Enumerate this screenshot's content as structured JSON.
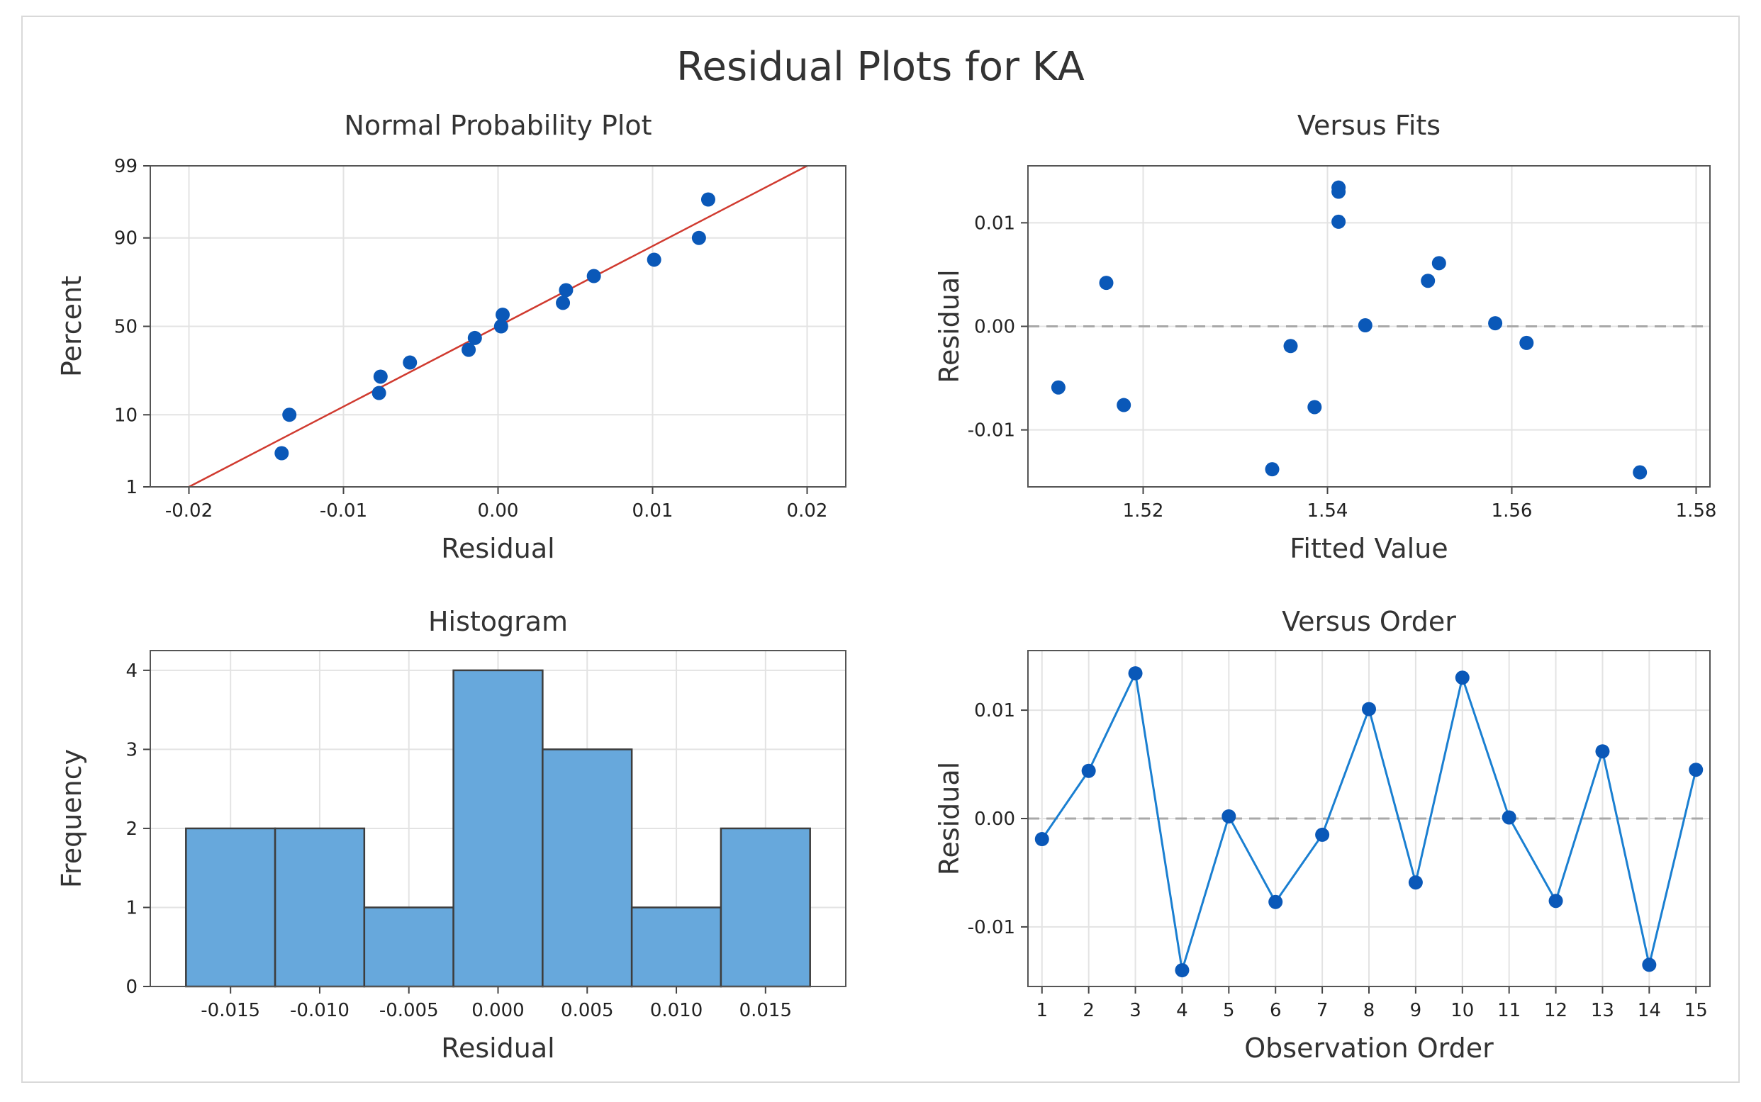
{
  "title": "Residual Plots for KA",
  "colors": {
    "point": "#0a58b8",
    "line": "#1a7fd1",
    "fit_line": "#d03a2f",
    "bar_fill": "#67a8dc",
    "bar_edge": "#3d3d3d",
    "grid": "#e3e3e3",
    "refline": "#a8a8a8"
  },
  "chart_data": [
    {
      "type": "scatter",
      "title": "Normal Probability Plot",
      "xlabel": "Residual",
      "ylabel": "Percent",
      "xlim": [
        -0.0225,
        0.0225
      ],
      "xticks": [
        -0.02,
        -0.01,
        0.0,
        0.01,
        0.02
      ],
      "xtick_labels": [
        "-0.02",
        "-0.01",
        "0.00",
        "0.01",
        "0.02"
      ],
      "yscale": "normal-probability",
      "ylim_percent": [
        1,
        99
      ],
      "yticks": [
        1,
        10,
        50,
        90,
        99
      ],
      "ytick_labels": [
        "1",
        "10",
        "50",
        "90",
        "99"
      ],
      "points": [
        {
          "x": -0.014,
          "p": 3.3
        },
        {
          "x": -0.0135,
          "p": 10.0
        },
        {
          "x": -0.0077,
          "p": 16.7
        },
        {
          "x": -0.0076,
          "p": 23.3
        },
        {
          "x": -0.0057,
          "p": 30.0
        },
        {
          "x": -0.0019,
          "p": 36.7
        },
        {
          "x": -0.0015,
          "p": 43.3
        },
        {
          "x": 0.0002,
          "p": 50.0
        },
        {
          "x": 0.0003,
          "p": 56.7
        },
        {
          "x": 0.0042,
          "p": 63.3
        },
        {
          "x": 0.0044,
          "p": 70.0
        },
        {
          "x": 0.0062,
          "p": 76.7
        },
        {
          "x": 0.0101,
          "p": 83.3
        },
        {
          "x": 0.013,
          "p": 90.0
        },
        {
          "x": 0.0136,
          "p": 96.7
        }
      ],
      "fit_line": {
        "x": [
          -0.02,
          0.02
        ],
        "p": [
          1,
          99
        ]
      }
    },
    {
      "type": "scatter",
      "title": "Versus Fits",
      "xlabel": "Fitted Value",
      "ylabel": "Residual",
      "xlim": [
        1.5075,
        1.5815
      ],
      "xticks": [
        1.52,
        1.54,
        1.56,
        1.58
      ],
      "xtick_labels": [
        "1.52",
        "1.54",
        "1.56",
        "1.58"
      ],
      "ylim": [
        -0.0155,
        0.0155
      ],
      "yticks": [
        -0.01,
        0.0,
        0.01
      ],
      "ytick_labels": [
        "-0.01",
        "0.00",
        "0.01"
      ],
      "reference_y": 0,
      "points": [
        {
          "x": 1.5108,
          "y": -0.0059
        },
        {
          "x": 1.516,
          "y": 0.0042
        },
        {
          "x": 1.5179,
          "y": -0.0076
        },
        {
          "x": 1.534,
          "y": -0.0138
        },
        {
          "x": 1.536,
          "y": -0.0019
        },
        {
          "x": 1.5386,
          "y": -0.0078
        },
        {
          "x": 1.5412,
          "y": 0.0134
        },
        {
          "x": 1.5412,
          "y": 0.013
        },
        {
          "x": 1.5412,
          "y": 0.0101
        },
        {
          "x": 1.5441,
          "y": 0.0001
        },
        {
          "x": 1.5509,
          "y": 0.0044
        },
        {
          "x": 1.5521,
          "y": 0.0061
        },
        {
          "x": 1.5582,
          "y": 0.0003
        },
        {
          "x": 1.5616,
          "y": -0.0016
        },
        {
          "x": 1.5739,
          "y": -0.0141
        }
      ]
    },
    {
      "type": "bar",
      "title": "Histogram",
      "xlabel": "Residual",
      "ylabel": "Frequency",
      "xlim": [
        -0.0195,
        0.0195
      ],
      "xticks": [
        -0.015,
        -0.01,
        -0.005,
        0.0,
        0.005,
        0.01,
        0.015
      ],
      "xtick_labels": [
        "-0.015",
        "-0.010",
        "-0.005",
        "0.000",
        "0.005",
        "0.010",
        "0.015"
      ],
      "ylim": [
        0,
        4.25
      ],
      "yticks": [
        0,
        1,
        2,
        3,
        4
      ],
      "ytick_labels": [
        "0",
        "1",
        "2",
        "3",
        "4"
      ],
      "bin_width": 0.005,
      "bin_centers": [
        -0.015,
        -0.01,
        -0.005,
        0.0,
        0.005,
        0.01,
        0.015
      ],
      "values": [
        2,
        2,
        1,
        4,
        3,
        1,
        2
      ]
    },
    {
      "type": "line",
      "title": "Versus Order",
      "xlabel": "Observation Order",
      "ylabel": "Residual",
      "xlim": [
        0.7,
        15.3
      ],
      "xticks": [
        1,
        2,
        3,
        4,
        5,
        6,
        7,
        8,
        9,
        10,
        11,
        12,
        13,
        14,
        15
      ],
      "xtick_labels": [
        "1",
        "2",
        "3",
        "4",
        "5",
        "6",
        "7",
        "8",
        "9",
        "10",
        "11",
        "12",
        "13",
        "14",
        "15"
      ],
      "ylim": [
        -0.0155,
        0.0155
      ],
      "yticks": [
        -0.01,
        0.0,
        0.01
      ],
      "ytick_labels": [
        "-0.01",
        "0.00",
        "0.01"
      ],
      "reference_y": 0,
      "x": [
        1,
        2,
        3,
        4,
        5,
        6,
        7,
        8,
        9,
        10,
        11,
        12,
        13,
        14,
        15
      ],
      "values": [
        -0.0019,
        0.0044,
        0.0134,
        -0.014,
        0.0002,
        -0.0077,
        -0.0015,
        0.0101,
        -0.0059,
        0.013,
        0.0001,
        -0.0076,
        0.0062,
        -0.0135,
        0.0045
      ]
    }
  ]
}
